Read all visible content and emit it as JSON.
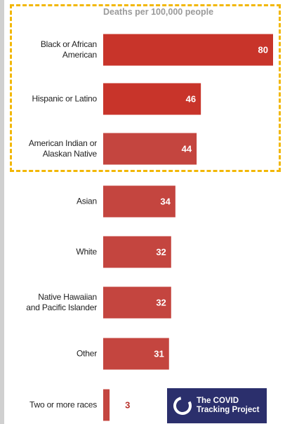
{
  "chart_data": {
    "type": "bar",
    "orientation": "horizontal",
    "title": "Deaths per 100,000 people",
    "categories": [
      "Black or African\nAmerican",
      "Hispanic or Latino",
      "American Indian or\nAlaskan Native",
      "Asian",
      "White",
      "Native Hawaiian\nand Pacific Islander",
      "Other",
      "Two or more races"
    ],
    "values": [
      80,
      46,
      44,
      34,
      32,
      32,
      31,
      3
    ],
    "colors": [
      "#c8342a",
      "#c8342a",
      "#c4453f",
      "#c4453f",
      "#c4453f",
      "#c4453f",
      "#c4453f",
      "#c4453f"
    ]
  },
  "logo": {
    "text": "The COVID\nTracking Project"
  }
}
